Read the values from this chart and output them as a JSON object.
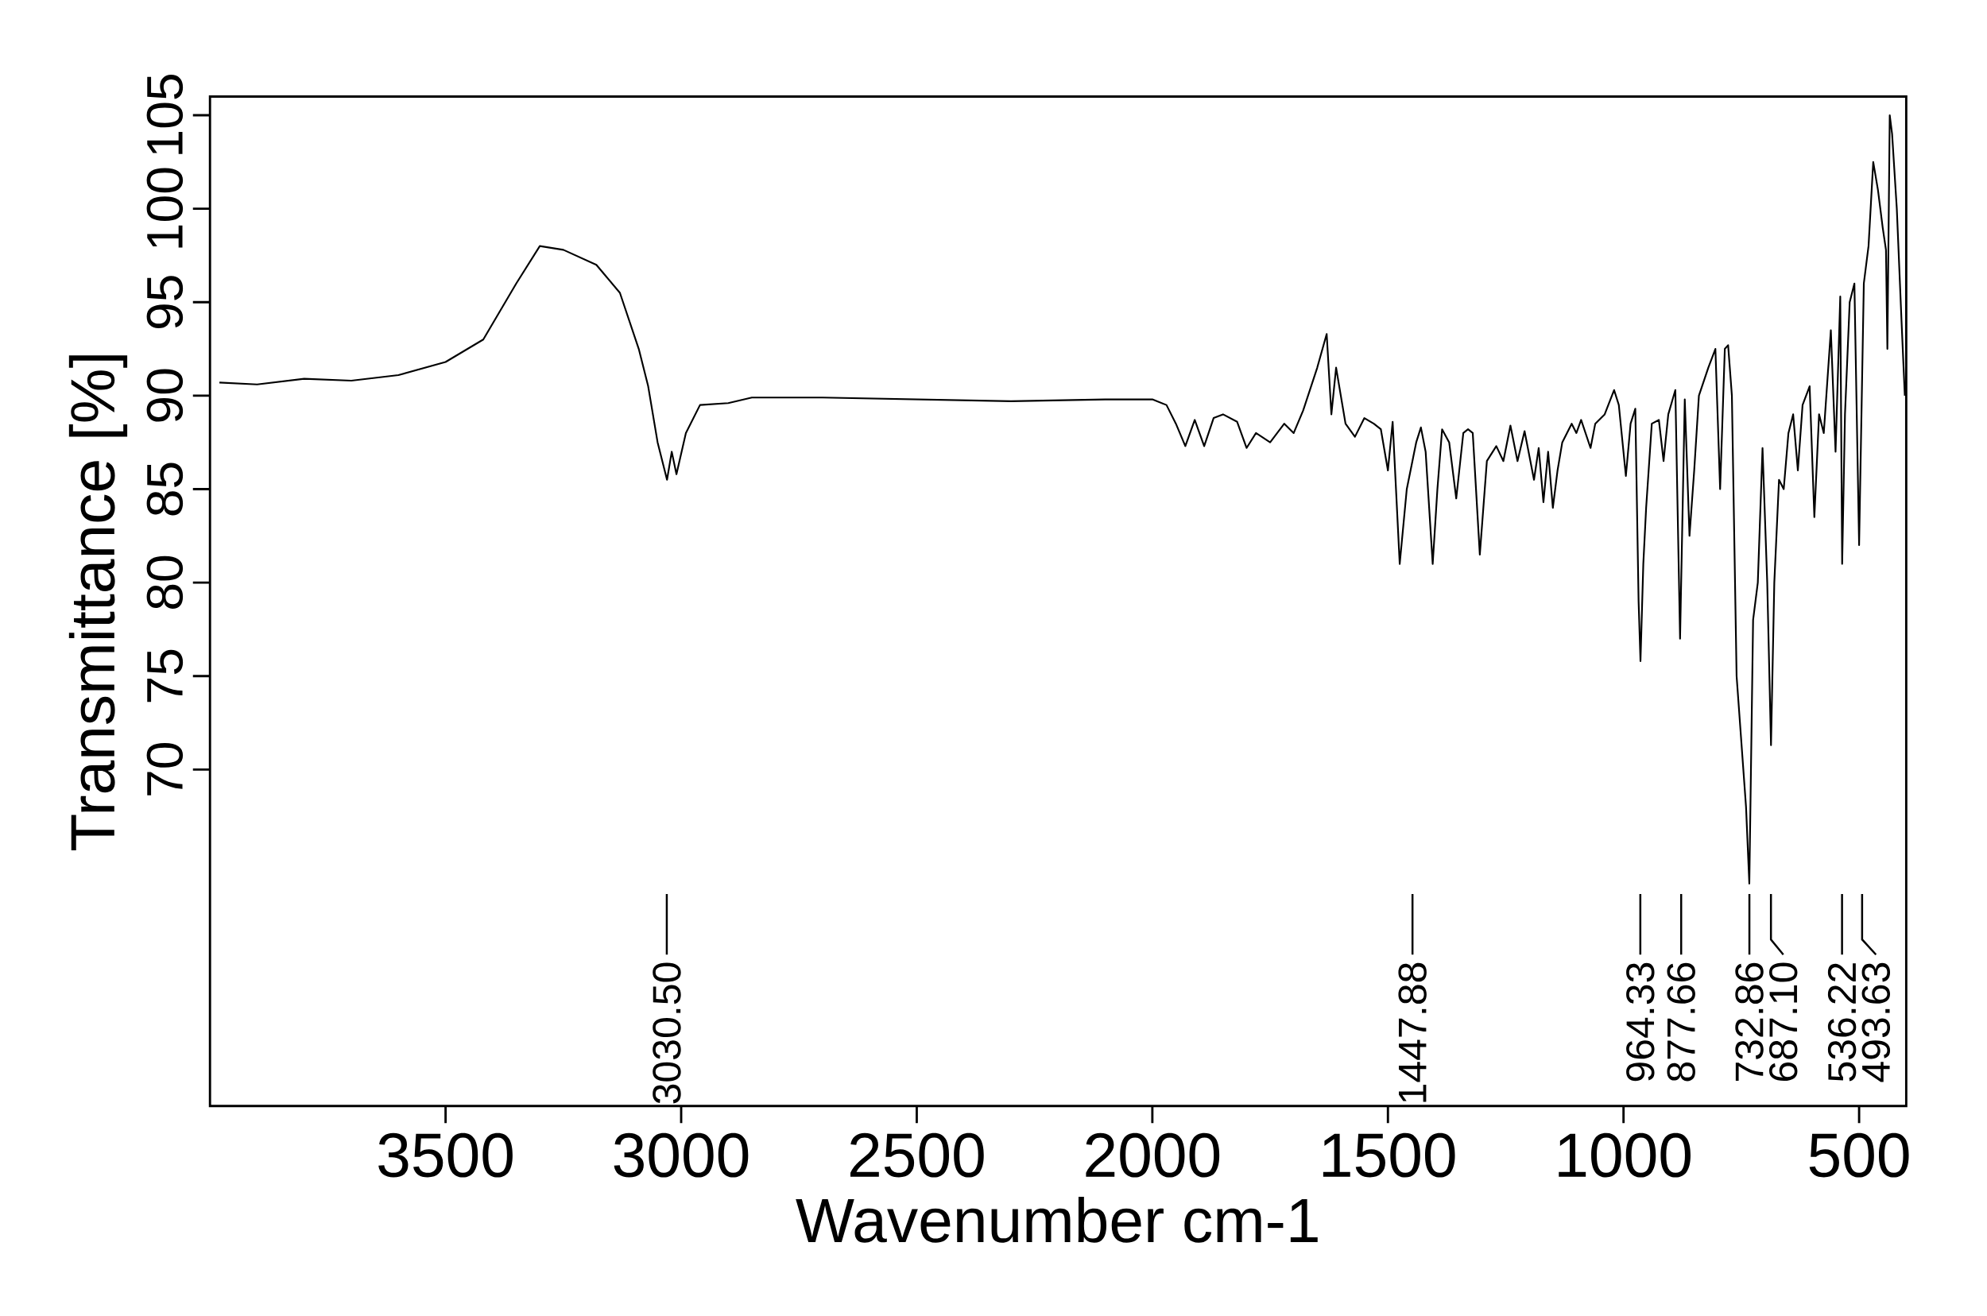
{
  "chart_data": {
    "type": "line",
    "xlabel": "Wavenumber cm-1",
    "ylabel": "Transmittance [%]",
    "xlim": [
      4000,
      400
    ],
    "ylim": [
      52,
      106
    ],
    "xticks": [
      3500,
      3000,
      2500,
      2000,
      1500,
      1000,
      500
    ],
    "yticks": [
      70,
      75,
      80,
      85,
      90,
      95,
      100,
      105
    ],
    "series": [
      {
        "color": "#000000",
        "x": [
          3980,
          3900,
          3800,
          3700,
          3600,
          3500,
          3420,
          3350,
          3300,
          3250,
          3180,
          3130,
          3090,
          3070,
          3050,
          3030,
          3020,
          3010,
          2990,
          2960,
          2900,
          2850,
          2700,
          2500,
          2300,
          2100,
          2000,
          1970,
          1950,
          1930,
          1910,
          1890,
          1870,
          1850,
          1820,
          1800,
          1780,
          1750,
          1720,
          1700,
          1680,
          1650,
          1630,
          1620,
          1610,
          1590,
          1570,
          1550,
          1530,
          1515,
          1500,
          1490,
          1475,
          1460,
          1440,
          1430,
          1420,
          1405,
          1395,
          1385,
          1370,
          1355,
          1340,
          1330,
          1320,
          1305,
          1290,
          1270,
          1255,
          1240,
          1225,
          1210,
          1190,
          1180,
          1170,
          1160,
          1150,
          1140,
          1130,
          1110,
          1100,
          1090,
          1070,
          1060,
          1040,
          1020,
          1010,
          995,
          985,
          975,
          968,
          964,
          958,
          952,
          940,
          925,
          915,
          905,
          890,
          880,
          870,
          860,
          850,
          840,
          820,
          805,
          795,
          785,
          778,
          770,
          760,
          740,
          733,
          725,
          715,
          705,
          695,
          687,
          680,
          670,
          660,
          650,
          640,
          630,
          620,
          605,
          595,
          585,
          575,
          560,
          550,
          540,
          536,
          530,
          520,
          510,
          500,
          490,
          480,
          470,
          460,
          450,
          443,
          440,
          435,
          430,
          420,
          410,
          403
        ],
        "values": [
          90.7,
          90.6,
          90.9,
          90.8,
          91.1,
          91.8,
          93.0,
          96.0,
          98.0,
          97.8,
          97.0,
          95.5,
          92.5,
          90.5,
          87.5,
          85.5,
          87.0,
          85.8,
          88.0,
          89.5,
          89.6,
          89.9,
          89.9,
          89.8,
          89.7,
          89.8,
          89.8,
          89.5,
          88.5,
          87.3,
          88.7,
          87.3,
          88.8,
          89.0,
          88.6,
          87.2,
          88.0,
          87.5,
          88.5,
          88.0,
          89.2,
          91.5,
          93.3,
          89.0,
          91.5,
          88.5,
          87.8,
          88.8,
          88.5,
          88.2,
          86.0,
          88.6,
          81.0,
          85.0,
          87.5,
          88.3,
          87.0,
          81.0,
          85.0,
          88.2,
          87.5,
          84.5,
          88.0,
          88.2,
          88.0,
          81.5,
          86.5,
          87.3,
          86.5,
          88.4,
          86.5,
          88.1,
          85.5,
          87.2,
          84.3,
          87.0,
          84.0,
          86.0,
          87.5,
          88.5,
          88.0,
          88.7,
          87.2,
          88.5,
          89.0,
          90.3,
          89.5,
          85.7,
          88.5,
          89.3,
          79.0,
          75.8,
          81.0,
          84.0,
          88.5,
          88.7,
          86.5,
          89.0,
          90.3,
          77.0,
          89.8,
          82.5,
          86.0,
          90.0,
          91.5,
          92.5,
          85.0,
          92.5,
          92.7,
          90.0,
          75.0,
          68.0,
          63.9,
          78.0,
          80.0,
          87.2,
          80.0,
          71.3,
          80.0,
          85.5,
          85.0,
          88.0,
          89.0,
          86.0,
          89.5,
          90.5,
          83.5,
          89.0,
          88.0,
          93.5,
          87.0,
          95.3,
          81.0,
          89.0,
          95.0,
          96.0,
          82.0,
          96.0,
          98.0,
          102.5,
          101.0,
          99.0,
          97.8,
          92.5,
          105.0,
          104.0,
          100.0,
          94.0,
          90.0
        ]
      }
    ],
    "ref_lines": [
      {
        "axis": "x",
        "value": 3030.5,
        "label": "3030.50"
      },
      {
        "axis": "x",
        "value": 1447.88,
        "label": "1447.88"
      },
      {
        "axis": "x",
        "value": 964.33,
        "label": "964.33"
      },
      {
        "axis": "x",
        "value": 877.66,
        "label": "877.66"
      },
      {
        "axis": "x",
        "value": 732.86,
        "label": "732.86"
      },
      {
        "axis": "x",
        "value": 687.1,
        "label": "687.10"
      },
      {
        "axis": "x",
        "value": 536.22,
        "label": "536.22"
      },
      {
        "axis": "x",
        "value": 493.63,
        "label": "493.63"
      }
    ]
  }
}
